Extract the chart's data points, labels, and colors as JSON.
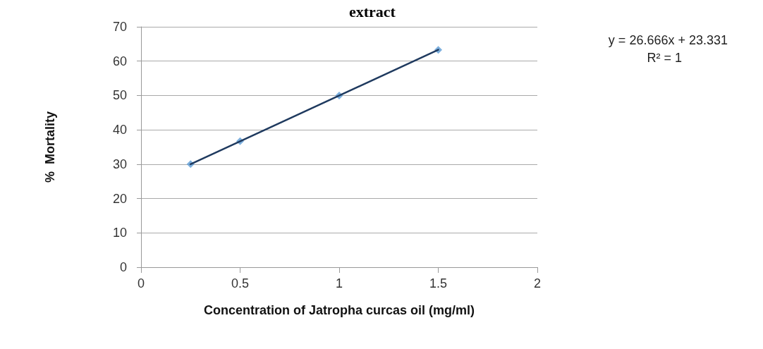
{
  "chart_data": {
    "type": "scatter",
    "title": "extract",
    "xlabel": "Concentration of Jatropha curcas oil (mg/ml)",
    "ylabel": "%  Mortality",
    "series": [
      {
        "color": "#5b9bd5",
        "x": [
          0.25,
          0.5,
          1,
          1.5
        ],
        "values": [
          30,
          36.7,
          50,
          63.3
        ],
        "marker": "diamond"
      },
      {
        "type": "line",
        "color": "#1f3a5f",
        "x": [
          0.25,
          1.5
        ],
        "values": [
          30,
          63.3
        ],
        "marker": "none",
        "line_style": "solid"
      }
    ],
    "annotations": [
      "y = 26.666x + 23.331",
      "R² = 1"
    ],
    "xlim": [
      0,
      2
    ],
    "xticks": [
      0,
      0.5,
      1,
      1.5,
      2
    ],
    "ylim": [
      0,
      70
    ],
    "yticks": [
      0,
      10,
      20,
      30,
      40,
      50,
      60,
      70
    ],
    "grid": "y"
  }
}
